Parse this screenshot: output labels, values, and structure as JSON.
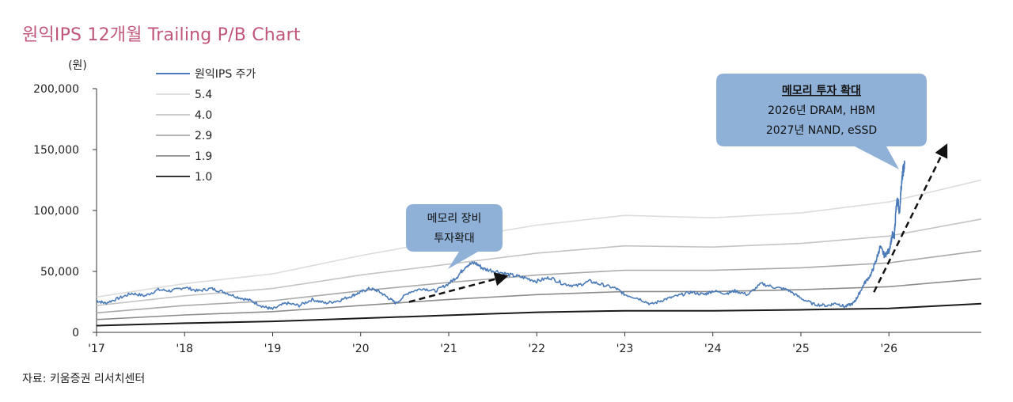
{
  "title": "원익IPS 12개월 Trailing P/B Chart",
  "source": "자료: 키움증권 리서치센터",
  "colors": {
    "title": "#c0567a",
    "price": "#4a7ab7",
    "bands": [
      "#dcdcdc",
      "#c4c4c4",
      "#a9a9a9",
      "#8c8c8c",
      "#1a1a1a"
    ],
    "callout_fill": "#8fb0d7"
  },
  "chart_data": {
    "type": "line",
    "ylabel": "(원)",
    "ylim": [
      0,
      200000
    ],
    "yticks": [
      0,
      50000,
      100000,
      150000,
      200000
    ],
    "ytick_labels": [
      "0",
      "50,000",
      "100,000",
      "150,000",
      "200,000"
    ],
    "xlim": [
      2017.0,
      2027.05
    ],
    "xticks": [
      2017,
      2018,
      2019,
      2020,
      2021,
      2022,
      2023,
      2024,
      2025,
      2026
    ],
    "xtick_labels": [
      "'17",
      "'18",
      "'19",
      "'20",
      "'21",
      "'22",
      "'23",
      "'24",
      "'25",
      "'26"
    ],
    "grid": false,
    "legend_position": "top-left",
    "series": [
      {
        "name": "원익IPS 주가",
        "x": [
          2017.0,
          2017.1,
          2017.25,
          2017.4,
          2017.55,
          2017.7,
          2017.85,
          2018.0,
          2018.15,
          2018.3,
          2018.45,
          2018.6,
          2018.75,
          2018.9,
          2019.0,
          2019.15,
          2019.3,
          2019.45,
          2019.6,
          2019.75,
          2019.9,
          2020.0,
          2020.1,
          2020.2,
          2020.3,
          2020.4,
          2020.55,
          2020.7,
          2020.85,
          2021.0,
          2021.1,
          2021.2,
          2021.3,
          2021.4,
          2021.55,
          2021.7,
          2021.85,
          2022.0,
          2022.15,
          2022.3,
          2022.45,
          2022.6,
          2022.75,
          2022.9,
          2023.0,
          2023.15,
          2023.3,
          2023.45,
          2023.6,
          2023.75,
          2023.9,
          2024.0,
          2024.15,
          2024.25,
          2024.4,
          2024.55,
          2024.7,
          2024.85,
          2025.0,
          2025.15,
          2025.3,
          2025.4,
          2025.5,
          2025.6,
          2025.65,
          2025.72,
          2025.8,
          2025.85,
          2025.9,
          2025.95,
          2026.0,
          2026.04,
          2026.06,
          2026.08,
          2026.1,
          2026.12,
          2026.14,
          2026.16,
          2026.18
        ],
        "values": [
          26000,
          24000,
          28000,
          32000,
          30000,
          35000,
          34000,
          37000,
          34000,
          36000,
          33000,
          29000,
          26000,
          21000,
          19000,
          24000,
          22000,
          27000,
          24000,
          26000,
          30000,
          33000,
          36000,
          34000,
          29000,
          24000,
          33000,
          36000,
          34000,
          40000,
          46000,
          55000,
          57000,
          52000,
          50000,
          47000,
          45000,
          42000,
          45000,
          40000,
          38000,
          42000,
          39000,
          36000,
          31000,
          28000,
          23000,
          27000,
          30000,
          33000,
          31000,
          34000,
          32000,
          34000,
          31000,
          40000,
          37000,
          35000,
          28000,
          23000,
          22000,
          24000,
          21000,
          24000,
          30000,
          40000,
          48000,
          58000,
          70000,
          63000,
          67000,
          80000,
          78000,
          100000,
          110000,
          98000,
          120000,
          132000,
          138000
        ]
      },
      {
        "name": "5.4",
        "x": [
          2017.0,
          2018.0,
          2019.0,
          2020.0,
          2021.0,
          2022.0,
          2023.0,
          2024.0,
          2025.0,
          2026.0,
          2027.05
        ],
        "values": [
          29000,
          40000,
          48000,
          63000,
          76000,
          88000,
          96000,
          94000,
          98000,
          107000,
          125000
        ]
      },
      {
        "name": "4.0",
        "x": [
          2017.0,
          2018.0,
          2019.0,
          2020.0,
          2021.0,
          2022.0,
          2023.0,
          2024.0,
          2025.0,
          2026.0,
          2027.05
        ],
        "values": [
          22000,
          30000,
          36000,
          47000,
          56000,
          65000,
          71000,
          70000,
          73000,
          79000,
          93000
        ]
      },
      {
        "name": "2.9",
        "x": [
          2017.0,
          2018.0,
          2019.0,
          2020.0,
          2021.0,
          2022.0,
          2023.0,
          2024.0,
          2025.0,
          2026.0,
          2027.05
        ],
        "values": [
          16000,
          22000,
          26000,
          34000,
          41000,
          47000,
          51000,
          51000,
          53000,
          57000,
          67000
        ]
      },
      {
        "name": "1.9",
        "x": [
          2017.0,
          2018.0,
          2019.0,
          2020.0,
          2021.0,
          2022.0,
          2023.0,
          2024.0,
          2025.0,
          2026.0,
          2027.05
        ],
        "values": [
          10500,
          14300,
          17000,
          22000,
          27000,
          31000,
          33500,
          33500,
          35000,
          37500,
          44000
        ]
      },
      {
        "name": "1.0",
        "x": [
          2017.0,
          2018.0,
          2019.0,
          2020.0,
          2021.0,
          2022.0,
          2023.0,
          2024.0,
          2025.0,
          2026.0,
          2027.05
        ],
        "values": [
          5500,
          7500,
          9000,
          11500,
          14000,
          16500,
          17700,
          17700,
          18500,
          19700,
          23500
        ]
      }
    ],
    "annotations": [
      {
        "title": "메모리 장비",
        "lines": [
          "투자확대"
        ]
      },
      {
        "title": "메모리 투자 확대",
        "lines": [
          "2026년 DRAM, HBM",
          "2027년 NAND, eSSD"
        ]
      }
    ]
  }
}
